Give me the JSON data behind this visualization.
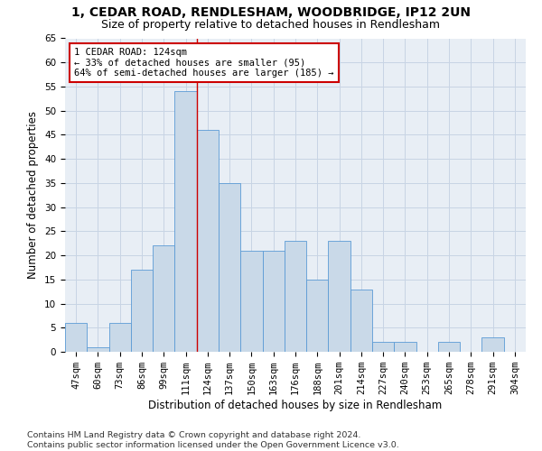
{
  "title1": "1, CEDAR ROAD, RENDLESHAM, WOODBRIDGE, IP12 2UN",
  "title2": "Size of property relative to detached houses in Rendlesham",
  "xlabel": "Distribution of detached houses by size in Rendlesham",
  "ylabel": "Number of detached properties",
  "footnote": "Contains HM Land Registry data © Crown copyright and database right 2024.\nContains public sector information licensed under the Open Government Licence v3.0.",
  "categories": [
    "47sqm",
    "60sqm",
    "73sqm",
    "86sqm",
    "99sqm",
    "111sqm",
    "124sqm",
    "137sqm",
    "150sqm",
    "163sqm",
    "176sqm",
    "188sqm",
    "201sqm",
    "214sqm",
    "227sqm",
    "240sqm",
    "253sqm",
    "265sqm",
    "278sqm",
    "291sqm",
    "304sqm"
  ],
  "values": [
    6,
    1,
    6,
    17,
    22,
    54,
    46,
    35,
    21,
    21,
    23,
    15,
    23,
    13,
    2,
    2,
    0,
    2,
    0,
    3,
    0
  ],
  "bar_color": "#c9d9e8",
  "bar_edge_color": "#5b9bd5",
  "highlight_label": "1 CEDAR ROAD: 124sqm",
  "annotation_line1": "← 33% of detached houses are smaller (95)",
  "annotation_line2": "64% of semi-detached houses are larger (185) →",
  "vline_color": "#cc0000",
  "annotation_box_edge": "#cc0000",
  "ylim": [
    0,
    65
  ],
  "yticks": [
    0,
    5,
    10,
    15,
    20,
    25,
    30,
    35,
    40,
    45,
    50,
    55,
    60,
    65
  ],
  "bg_color": "#ffffff",
  "plot_bg_color": "#e8eef5",
  "grid_color": "#c8d4e4",
  "title_fontsize": 10,
  "subtitle_fontsize": 9,
  "axis_label_fontsize": 8.5,
  "tick_fontsize": 7.5,
  "annotation_fontsize": 7.5,
  "footnote_fontsize": 6.8
}
